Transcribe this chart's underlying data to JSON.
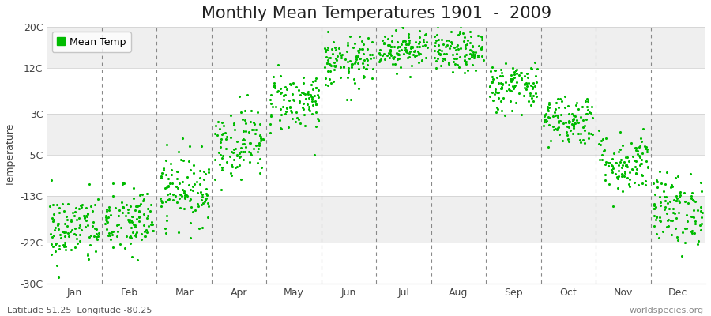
{
  "title": "Monthly Mean Temperatures 1901  -  2009",
  "ylabel": "Temperature",
  "xlabel_bottom_left": "Latitude 51.25  Longitude -80.25",
  "xlabel_bottom_right": "worldspecies.org",
  "legend_label": "Mean Temp",
  "yticks": [
    -30,
    -22,
    -13,
    -5,
    3,
    12,
    20
  ],
  "ytick_labels": [
    "-30C",
    "-22C",
    "-13C",
    "-5C",
    "3C",
    "12C",
    "20C"
  ],
  "ymin": -30,
  "ymax": 20,
  "months": [
    "Jan",
    "Feb",
    "Mar",
    "Apr",
    "May",
    "Jun",
    "Jul",
    "Aug",
    "Sep",
    "Oct",
    "Nov",
    "Dec"
  ],
  "dot_color": "#00BB00",
  "background_color": "#FFFFFF",
  "plot_bg_color": "#FFFFFF",
  "stripe_color": "#EFEFEF",
  "title_fontsize": 15,
  "label_fontsize": 9,
  "tick_fontsize": 9,
  "monthly_means": [
    -19.5,
    -18.0,
    -11.5,
    -2.5,
    5.5,
    13.0,
    16.0,
    15.0,
    8.5,
    2.0,
    -6.5,
    -15.5
  ],
  "monthly_stds": [
    3.5,
    3.5,
    3.5,
    3.5,
    3.0,
    2.5,
    2.0,
    2.0,
    2.5,
    2.5,
    3.0,
    3.5
  ],
  "n_years": 109,
  "seed": 42
}
